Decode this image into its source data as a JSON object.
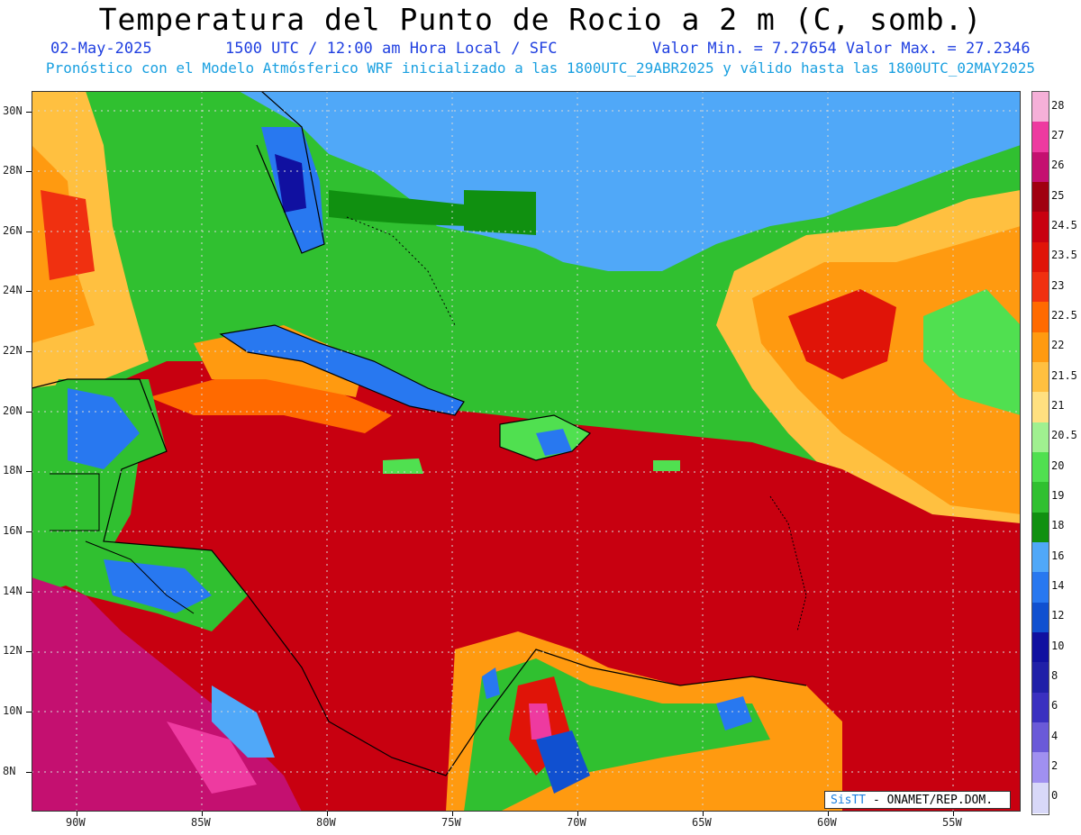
{
  "header": {
    "title": "Temperatura del Punto de Rocio a 2 m (C, somb.)",
    "date": "02-May-2025",
    "time_info": "1500 UTC / 12:00 am Hora Local / SFC",
    "value_range": "Valor Min. = 7.27654  Valor Max. = 27.2346",
    "model_info": "Pronóstico con el Modelo Atmósferico WRF inicializado a las 1800UTC_29ABR2025 y válido hasta las  1800UTC_02MAY2025"
  },
  "map": {
    "lat_labels": [
      "30N",
      "28N",
      "26N",
      "24N",
      "22N",
      "20N",
      "18N",
      "16N",
      "14N",
      "12N",
      "10N",
      "8N"
    ],
    "lon_labels": [
      "90W",
      "85W",
      "80W",
      "75W",
      "70W",
      "65W",
      "60W",
      "55W"
    ]
  },
  "colorbar": {
    "labels": [
      "28",
      "27",
      "26",
      "25",
      "24.5",
      "23.5",
      "23",
      "22.5",
      "22",
      "21.5",
      "21",
      "20.5",
      "20",
      "19",
      "18",
      "16",
      "14",
      "12",
      "10",
      "8",
      "6",
      "4",
      "2",
      "0"
    ],
    "colors": [
      "#f5b0d8",
      "#ee3aa0",
      "#c41070",
      "#a00010",
      "#c80010",
      "#e01408",
      "#f03010",
      "#ff6a00",
      "#ff9a10",
      "#ffc040",
      "#ffe080",
      "#a0f090",
      "#50e050",
      "#30c030",
      "#109010",
      "#50a8f8",
      "#2878f0",
      "#1050d0",
      "#1010a0",
      "#2020a8",
      "#3a30c0",
      "#6a5ad8",
      "#a090f0",
      "#d8d8f8"
    ]
  },
  "credit": {
    "brand": "SisTT",
    "text": " - ONAMET/REP.DOM."
  }
}
